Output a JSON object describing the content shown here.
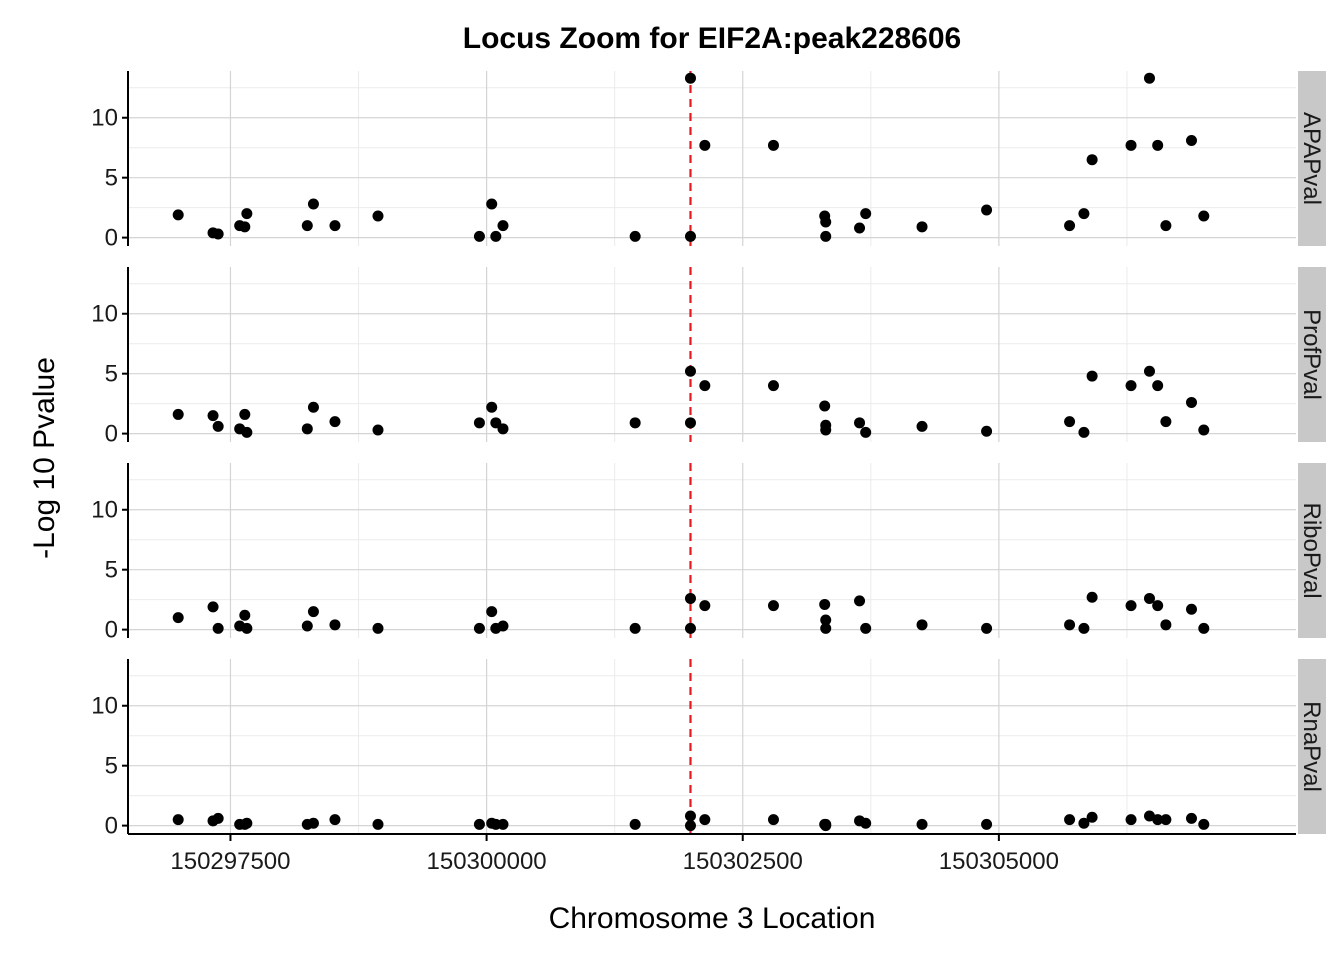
{
  "chart_data": {
    "type": "scatter",
    "title": "Locus Zoom for EIF2A:peak228606",
    "xlabel": "Chromosome 3 Location",
    "ylabel": "-Log 10 Pvalue",
    "xlim": [
      150296500,
      150307900
    ],
    "ylim": [
      -0.7,
      13.9
    ],
    "x_ticks": [
      150297500,
      150300000,
      150302500,
      150305000
    ],
    "x_tick_labels": [
      "150297500",
      "150300000",
      "150302500",
      "150305000"
    ],
    "y_ticks": [
      0,
      5,
      10
    ],
    "y_tick_labels": [
      "0",
      "5",
      "10"
    ],
    "grid": true,
    "vline": {
      "x": 150301990,
      "color": "#e41a1c",
      "style": "dashed"
    },
    "point_color": "#000000",
    "strip_color": "#c8c8c8",
    "facets": [
      {
        "name": "APAPval",
        "points": [
          [
            150296990,
            1.9
          ],
          [
            150297330,
            0.4
          ],
          [
            150297380,
            0.3
          ],
          [
            150297590,
            1.0
          ],
          [
            150297640,
            0.9
          ],
          [
            150297660,
            2.0
          ],
          [
            150298250,
            1.0
          ],
          [
            150298310,
            2.8
          ],
          [
            150298520,
            1.0
          ],
          [
            150298940,
            1.8
          ],
          [
            150299930,
            0.1
          ],
          [
            150300050,
            2.8
          ],
          [
            150300090,
            0.1
          ],
          [
            150300160,
            1.0
          ],
          [
            150301450,
            0.1
          ],
          [
            150301990,
            13.3
          ],
          [
            150301990,
            0.1
          ],
          [
            150302130,
            7.7
          ],
          [
            150302800,
            7.7
          ],
          [
            150303300,
            1.8
          ],
          [
            150303310,
            1.3
          ],
          [
            150303310,
            0.1
          ],
          [
            150303640,
            0.8
          ],
          [
            150303700,
            2.0
          ],
          [
            150304250,
            0.9
          ],
          [
            150304880,
            2.3
          ],
          [
            150305690,
            1.0
          ],
          [
            150305830,
            2.0
          ],
          [
            150305910,
            6.5
          ],
          [
            150306290,
            7.7
          ],
          [
            150306470,
            13.3
          ],
          [
            150306550,
            7.7
          ],
          [
            150306630,
            1.0
          ],
          [
            150306880,
            8.1
          ],
          [
            150307000,
            1.8
          ]
        ]
      },
      {
        "name": "ProfPval",
        "points": [
          [
            150296990,
            1.6
          ],
          [
            150297330,
            1.5
          ],
          [
            150297380,
            0.6
          ],
          [
            150297590,
            0.4
          ],
          [
            150297640,
            1.6
          ],
          [
            150297660,
            0.1
          ],
          [
            150298250,
            0.4
          ],
          [
            150298310,
            2.2
          ],
          [
            150298520,
            1.0
          ],
          [
            150298940,
            0.3
          ],
          [
            150299930,
            0.9
          ],
          [
            150300050,
            2.2
          ],
          [
            150300090,
            0.9
          ],
          [
            150300160,
            0.4
          ],
          [
            150301450,
            0.9
          ],
          [
            150301990,
            5.2
          ],
          [
            150301990,
            0.9
          ],
          [
            150302130,
            4.0
          ],
          [
            150302800,
            4.0
          ],
          [
            150303300,
            2.3
          ],
          [
            150303310,
            0.7
          ],
          [
            150303310,
            0.3
          ],
          [
            150303640,
            0.9
          ],
          [
            150303700,
            0.1
          ],
          [
            150304250,
            0.6
          ],
          [
            150304880,
            0.2
          ],
          [
            150305690,
            1.0
          ],
          [
            150305830,
            0.1
          ],
          [
            150305910,
            4.8
          ],
          [
            150306290,
            4.0
          ],
          [
            150306470,
            5.2
          ],
          [
            150306550,
            4.0
          ],
          [
            150306630,
            1.0
          ],
          [
            150306880,
            2.6
          ],
          [
            150307000,
            0.3
          ]
        ]
      },
      {
        "name": "RiboPval",
        "points": [
          [
            150296990,
            1.0
          ],
          [
            150297330,
            1.9
          ],
          [
            150297380,
            0.1
          ],
          [
            150297590,
            0.3
          ],
          [
            150297640,
            1.2
          ],
          [
            150297660,
            0.1
          ],
          [
            150298250,
            0.3
          ],
          [
            150298310,
            1.5
          ],
          [
            150298520,
            0.4
          ],
          [
            150298940,
            0.1
          ],
          [
            150299930,
            0.1
          ],
          [
            150300050,
            1.5
          ],
          [
            150300090,
            0.1
          ],
          [
            150300160,
            0.3
          ],
          [
            150301450,
            0.1
          ],
          [
            150301990,
            2.6
          ],
          [
            150301990,
            0.1
          ],
          [
            150302130,
            2.0
          ],
          [
            150302800,
            2.0
          ],
          [
            150303300,
            2.1
          ],
          [
            150303310,
            0.8
          ],
          [
            150303310,
            0.1
          ],
          [
            150303640,
            2.4
          ],
          [
            150303700,
            0.1
          ],
          [
            150304250,
            0.4
          ],
          [
            150304880,
            0.1
          ],
          [
            150305690,
            0.4
          ],
          [
            150305830,
            0.1
          ],
          [
            150305910,
            2.7
          ],
          [
            150306290,
            2.0
          ],
          [
            150306470,
            2.6
          ],
          [
            150306550,
            2.0
          ],
          [
            150306630,
            0.4
          ],
          [
            150306880,
            1.7
          ],
          [
            150307000,
            0.1
          ]
        ]
      },
      {
        "name": "RnaPval",
        "points": [
          [
            150296990,
            0.5
          ],
          [
            150297330,
            0.4
          ],
          [
            150297380,
            0.6
          ],
          [
            150297590,
            0.1
          ],
          [
            150297640,
            0.1
          ],
          [
            150297660,
            0.2
          ],
          [
            150298250,
            0.1
          ],
          [
            150298310,
            0.2
          ],
          [
            150298520,
            0.5
          ],
          [
            150298940,
            0.1
          ],
          [
            150299930,
            0.1
          ],
          [
            150300050,
            0.2
          ],
          [
            150300090,
            0.1
          ],
          [
            150300160,
            0.1
          ],
          [
            150301450,
            0.1
          ],
          [
            150301990,
            0.8
          ],
          [
            150301990,
            0.0
          ],
          [
            150302130,
            0.5
          ],
          [
            150302800,
            0.5
          ],
          [
            150303300,
            0.1
          ],
          [
            150303310,
            0.0
          ],
          [
            150303310,
            0.1
          ],
          [
            150303640,
            0.4
          ],
          [
            150303700,
            0.2
          ],
          [
            150304250,
            0.1
          ],
          [
            150304880,
            0.1
          ],
          [
            150305690,
            0.5
          ],
          [
            150305830,
            0.2
          ],
          [
            150305910,
            0.7
          ],
          [
            150306290,
            0.5
          ],
          [
            150306470,
            0.8
          ],
          [
            150306550,
            0.5
          ],
          [
            150306630,
            0.5
          ],
          [
            150306880,
            0.6
          ],
          [
            150307000,
            0.1
          ]
        ]
      }
    ]
  }
}
